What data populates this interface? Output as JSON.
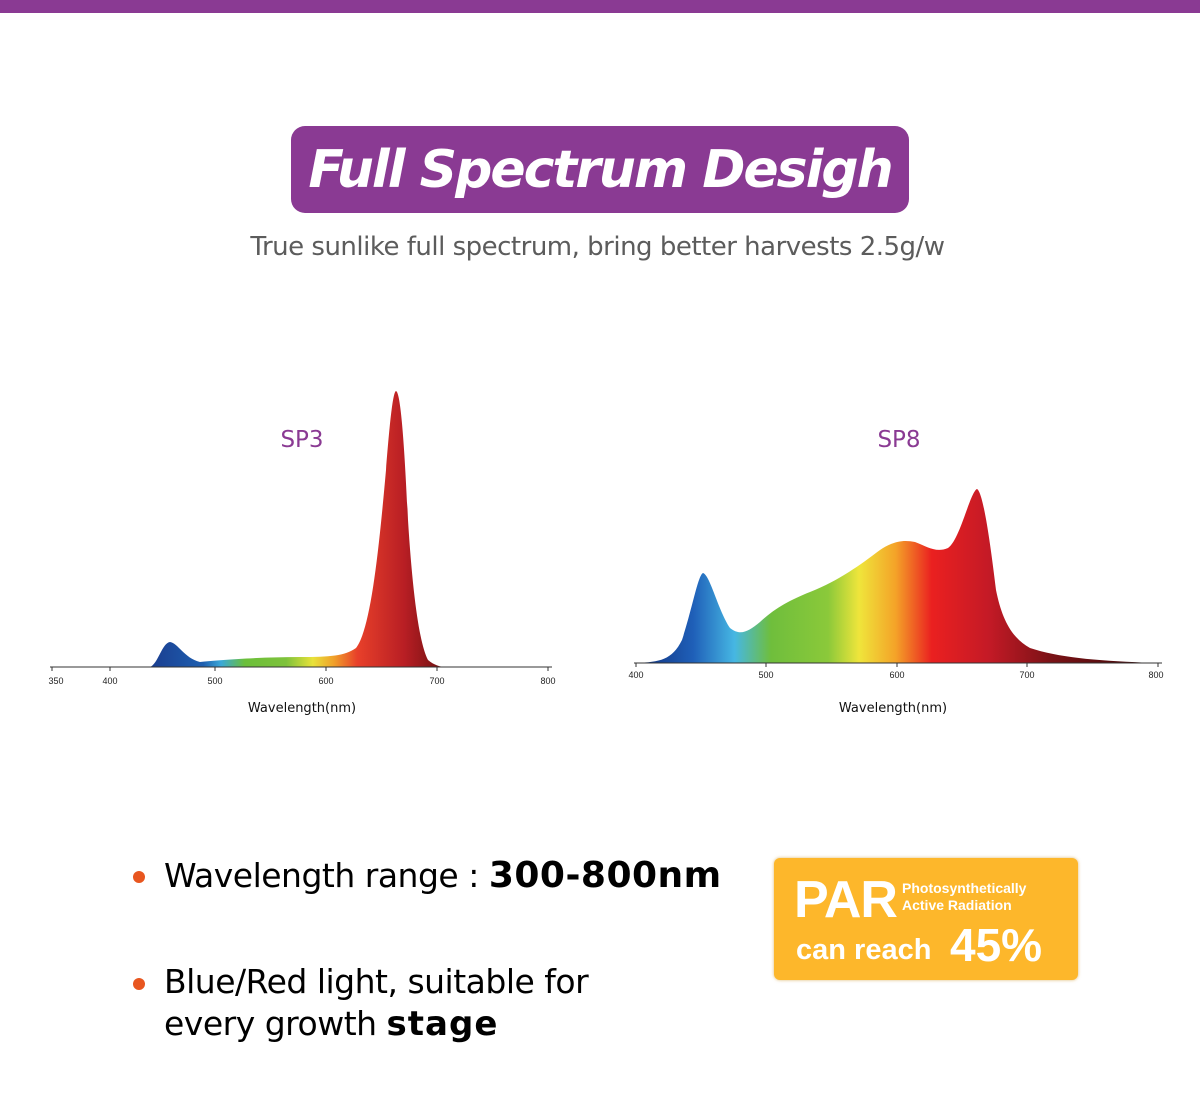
{
  "colors": {
    "brand_purple": "#8a3a93",
    "bullet_orange": "#e8561f",
    "par_yellow": "#fdb72b"
  },
  "header": {
    "title": "Full Spectrum Desigh",
    "subtitle": "True sunlike full spectrum, bring better harvests 2.5g/w"
  },
  "charts": [
    {
      "label": "SP3",
      "xlabel": "Wavelength(nm)",
      "ticks": [
        "350",
        "400",
        "500",
        "600",
        "700",
        "800"
      ],
      "peaks": [
        {
          "wavelength": 455,
          "relative": 0.09
        },
        {
          "wavelength": 660,
          "relative": 1.0
        }
      ]
    },
    {
      "label": "SP8",
      "xlabel": "Wavelength(nm)",
      "ticks": [
        "400",
        "500",
        "600",
        "700",
        "800"
      ],
      "peaks": [
        {
          "wavelength": 452,
          "relative": 0.52
        },
        {
          "wavelength": 600,
          "relative": 0.7
        },
        {
          "wavelength": 660,
          "relative": 1.0
        }
      ]
    }
  ],
  "features": {
    "item1_label": "Wavelength range :",
    "item1_value": "300-800nm",
    "item2_line1": "Blue/Red light, suitable for",
    "item2_line2": "every growth",
    "item2_tail": "stage"
  },
  "par": {
    "abbr": "PAR",
    "full_line1": "Photosynthetically",
    "full_line2": "Active Radiation",
    "reach": "can reach",
    "percent": "45%"
  }
}
